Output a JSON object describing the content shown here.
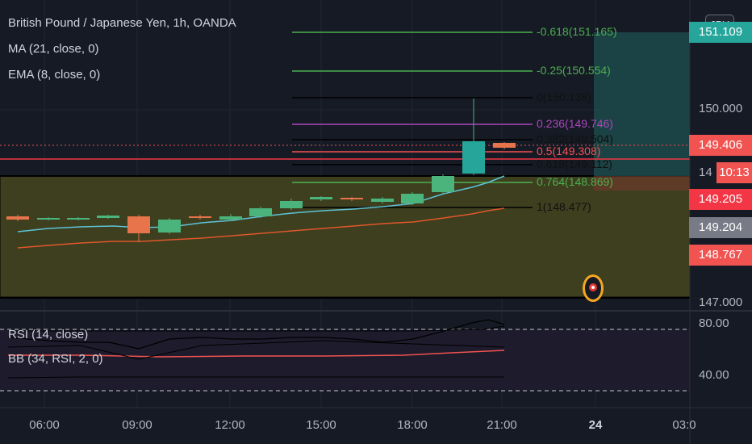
{
  "legend": {
    "symbol": "British Pound / Japanese Yen, 1h, OANDA",
    "ma": "MA (21, close, 0)",
    "ema": "EMA (8, close, 0)",
    "rsi": "RSI (14, close)",
    "bb": "BB (34, RSI, 2, 0)"
  },
  "currency_button": "JPY",
  "price_axis": {
    "labels": [
      "150.000",
      "147.000"
    ],
    "tags": [
      {
        "text": "151.109",
        "color": "#26a69a"
      },
      {
        "text": "149.406",
        "color": "#f05350"
      },
      {
        "text": "10:13",
        "color": "#f05350"
      },
      {
        "text": "149.205",
        "color": "#f23645"
      },
      {
        "text": "149.204",
        "color": "#787b86"
      },
      {
        "text": "148.767",
        "color": "#f05350"
      }
    ],
    "partial_labels": [
      "14"
    ]
  },
  "rsi_axis": {
    "labels": [
      "80.00",
      "40.00"
    ]
  },
  "time_axis": {
    "labels": [
      "06:00",
      "09:00",
      "12:00",
      "15:00",
      "18:00",
      "21:00",
      "24",
      "03:0"
    ]
  },
  "fib_levels": [
    {
      "text": "-0.618(151.165)",
      "color": "#4caf50"
    },
    {
      "text": "-0.25(150.554)",
      "color": "#4caf50"
    },
    {
      "text": "0(150.138)",
      "color": "#000000"
    },
    {
      "text": "0.236(149.746)",
      "color": "#ab47bc"
    },
    {
      "text": "0.382(149.504)",
      "color": "#000000"
    },
    {
      "text": "0.5(149.308)",
      "color": "#f05350"
    },
    {
      "text": "0.618(149.112)",
      "color": "#000000"
    },
    {
      "text": "0.764(148.869)",
      "color": "#4caf50"
    },
    {
      "text": "1(148.477)",
      "color": "#000000"
    }
  ],
  "colors": {
    "background": "#161a25",
    "up": "#4bb47c",
    "down": "#e8744b",
    "zone": "#3d3f1f",
    "ma_line": "#5ec3d6",
    "ema_line": "#e0572b",
    "grid": "#222632"
  }
}
